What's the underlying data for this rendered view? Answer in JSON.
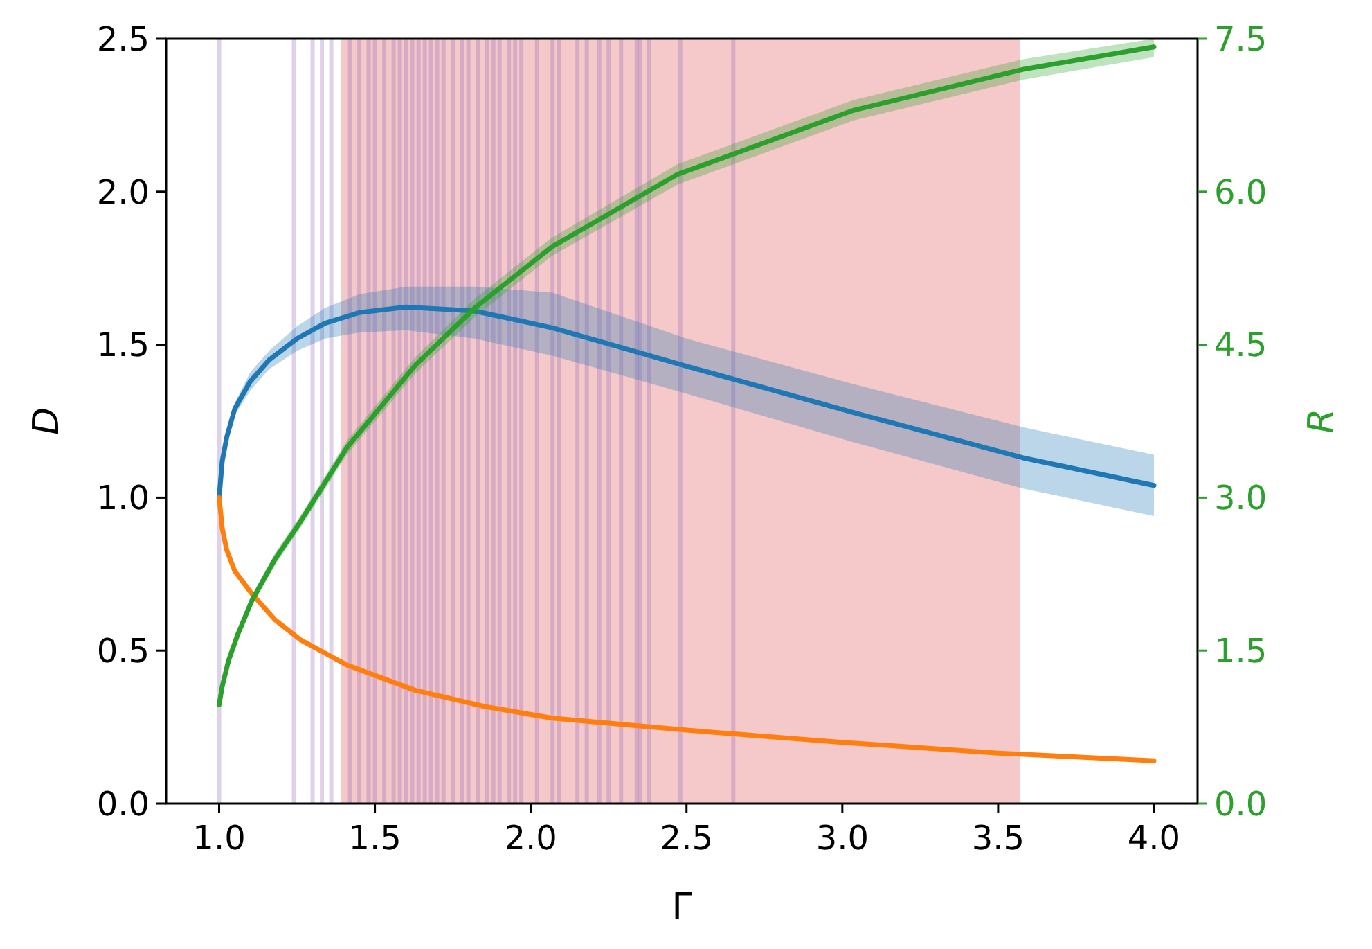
{
  "chart_data": {
    "type": "line",
    "xlabel": "Γ",
    "ylabel": "D",
    "y2label": "R",
    "xlim": [
      0.83,
      4.14
    ],
    "xticks": [
      {
        "value": 1,
        "label": "1.0"
      },
      {
        "value": 1.5,
        "label": "1.5"
      },
      {
        "value": 2,
        "label": "2.0"
      },
      {
        "value": 2.5,
        "label": "2.5"
      },
      {
        "value": 3,
        "label": "3.0"
      },
      {
        "value": 3.5,
        "label": "3.5"
      },
      {
        "value": 4,
        "label": "4.0"
      }
    ],
    "ylim": [
      0,
      2.5
    ],
    "yticks": [
      {
        "value": 0,
        "label": "0.0"
      },
      {
        "value": 0.5,
        "label": "0.5"
      },
      {
        "value": 1,
        "label": "1.0"
      },
      {
        "value": 1.5,
        "label": "1.5"
      },
      {
        "value": 2,
        "label": "2.0"
      },
      {
        "value": 2.5,
        "label": "2.5"
      }
    ],
    "y2lim": [
      0,
      7.5
    ],
    "y2ticks": [
      {
        "value": 0,
        "label": "0.0"
      },
      {
        "value": 1.5,
        "label": "1.5"
      },
      {
        "value": 3,
        "label": "3.0"
      },
      {
        "value": 4.5,
        "label": "4.5"
      },
      {
        "value": 6,
        "label": "6.0"
      },
      {
        "value": 7.5,
        "label": "7.5"
      }
    ],
    "bands": [
      {
        "axis": "x",
        "from": 1.39,
        "to": 3.57,
        "color": "#d62728"
      }
    ],
    "ref_lines": [
      {
        "axis": "x",
        "value": 1.0,
        "color": "#9467bd"
      },
      {
        "axis": "x",
        "value": 1.24,
        "color": "#9467bd"
      },
      {
        "axis": "x",
        "value": 1.3,
        "color": "#9467bd"
      },
      {
        "axis": "x",
        "value": 1.33,
        "color": "#9467bd"
      },
      {
        "axis": "x",
        "value": 1.36,
        "color": "#9467bd"
      },
      {
        "axis": "x",
        "value": 1.42,
        "color": "#9467bd"
      },
      {
        "axis": "x",
        "value": 1.45,
        "color": "#9467bd"
      },
      {
        "axis": "x",
        "value": 1.48,
        "color": "#9467bd"
      },
      {
        "axis": "x",
        "value": 1.5,
        "color": "#9467bd"
      },
      {
        "axis": "x",
        "value": 1.53,
        "color": "#9467bd"
      },
      {
        "axis": "x",
        "value": 1.56,
        "color": "#9467bd"
      },
      {
        "axis": "x",
        "value": 1.58,
        "color": "#9467bd"
      },
      {
        "axis": "x",
        "value": 1.6,
        "color": "#9467bd"
      },
      {
        "axis": "x",
        "value": 1.62,
        "color": "#9467bd"
      },
      {
        "axis": "x",
        "value": 1.64,
        "color": "#9467bd"
      },
      {
        "axis": "x",
        "value": 1.66,
        "color": "#9467bd"
      },
      {
        "axis": "x",
        "value": 1.68,
        "color": "#9467bd"
      },
      {
        "axis": "x",
        "value": 1.7,
        "color": "#9467bd"
      },
      {
        "axis": "x",
        "value": 1.72,
        "color": "#9467bd"
      },
      {
        "axis": "x",
        "value": 1.75,
        "color": "#9467bd"
      },
      {
        "axis": "x",
        "value": 1.78,
        "color": "#9467bd"
      },
      {
        "axis": "x",
        "value": 1.8,
        "color": "#9467bd"
      },
      {
        "axis": "x",
        "value": 1.83,
        "color": "#9467bd"
      },
      {
        "axis": "x",
        "value": 1.86,
        "color": "#9467bd"
      },
      {
        "axis": "x",
        "value": 1.88,
        "color": "#9467bd"
      },
      {
        "axis": "x",
        "value": 1.9,
        "color": "#9467bd"
      },
      {
        "axis": "x",
        "value": 1.93,
        "color": "#9467bd"
      },
      {
        "axis": "x",
        "value": 1.95,
        "color": "#9467bd"
      },
      {
        "axis": "x",
        "value": 1.97,
        "color": "#9467bd"
      },
      {
        "axis": "x",
        "value": 2.02,
        "color": "#9467bd"
      },
      {
        "axis": "x",
        "value": 2.07,
        "color": "#9467bd"
      },
      {
        "axis": "x",
        "value": 2.09,
        "color": "#9467bd"
      },
      {
        "axis": "x",
        "value": 2.15,
        "color": "#9467bd"
      },
      {
        "axis": "x",
        "value": 2.18,
        "color": "#9467bd"
      },
      {
        "axis": "x",
        "value": 2.22,
        "color": "#9467bd"
      },
      {
        "axis": "x",
        "value": 2.25,
        "color": "#9467bd"
      },
      {
        "axis": "x",
        "value": 2.29,
        "color": "#9467bd"
      },
      {
        "axis": "x",
        "value": 2.34,
        "color": "#9467bd"
      },
      {
        "axis": "x",
        "value": 2.35,
        "color": "#9467bd"
      },
      {
        "axis": "x",
        "value": 2.38,
        "color": "#9467bd"
      },
      {
        "axis": "x",
        "value": 2.48,
        "color": "#9467bd"
      },
      {
        "axis": "x",
        "value": 2.65,
        "color": "#9467bd"
      }
    ],
    "series": [
      {
        "color": "#1f77b4",
        "x": [
          1,
          1.01,
          1.025,
          1.05,
          1.1,
          1.16,
          1.25,
          1.34,
          1.45,
          1.6,
          1.82,
          2.07,
          2.5,
          3.04,
          3.58,
          4
        ],
        "values": [
          1,
          1.12,
          1.2,
          1.29,
          1.38,
          1.45,
          1.52,
          1.57,
          1.605,
          1.623,
          1.61,
          1.555,
          1.43,
          1.277,
          1.13,
          1.04
        ],
        "lower": [
          1,
          1.11,
          1.19,
          1.27,
          1.35,
          1.42,
          1.48,
          1.52,
          1.54,
          1.547,
          1.52,
          1.464,
          1.34,
          1.18,
          1.03,
          0.94
        ],
        "upper": [
          1,
          1.13,
          1.21,
          1.31,
          1.41,
          1.48,
          1.56,
          1.62,
          1.665,
          1.69,
          1.69,
          1.67,
          1.52,
          1.37,
          1.23,
          1.14
        ]
      },
      {
        "color": "#ff7f0e",
        "x": [
          1,
          1.01,
          1.024,
          1.05,
          1.105,
          1.18,
          1.26,
          1.41,
          1.63,
          1.853,
          2.07,
          2.5,
          3,
          3.5,
          4
        ],
        "values": [
          1,
          0.9,
          0.83,
          0.76,
          0.686,
          0.6,
          0.536,
          0.453,
          0.37,
          0.317,
          0.279,
          0.24,
          0.2,
          0.165,
          0.14
        ]
      },
      {
        "color": "#2ca02c",
        "axis": "y2",
        "x": [
          1,
          1.01,
          1.03,
          1.06,
          1.105,
          1.18,
          1.26,
          1.41,
          1.63,
          1.824,
          2.068,
          2.471,
          3.037,
          3.58,
          4
        ],
        "values": [
          0.97,
          1.15,
          1.4,
          1.66,
          1.99,
          2.4,
          2.76,
          3.49,
          4.3,
          4.87,
          5.46,
          6.17,
          6.8,
          7.2,
          7.42
        ],
        "lower": [
          0.97,
          1.13,
          1.37,
          1.62,
          1.94,
          2.34,
          2.7,
          3.42,
          4.22,
          4.78,
          5.37,
          6.07,
          6.7,
          7.1,
          7.32
        ],
        "upper": [
          0.97,
          1.17,
          1.43,
          1.7,
          2.04,
          2.46,
          2.82,
          3.56,
          4.38,
          4.96,
          5.55,
          6.27,
          6.9,
          7.3,
          7.5
        ]
      }
    ]
  }
}
